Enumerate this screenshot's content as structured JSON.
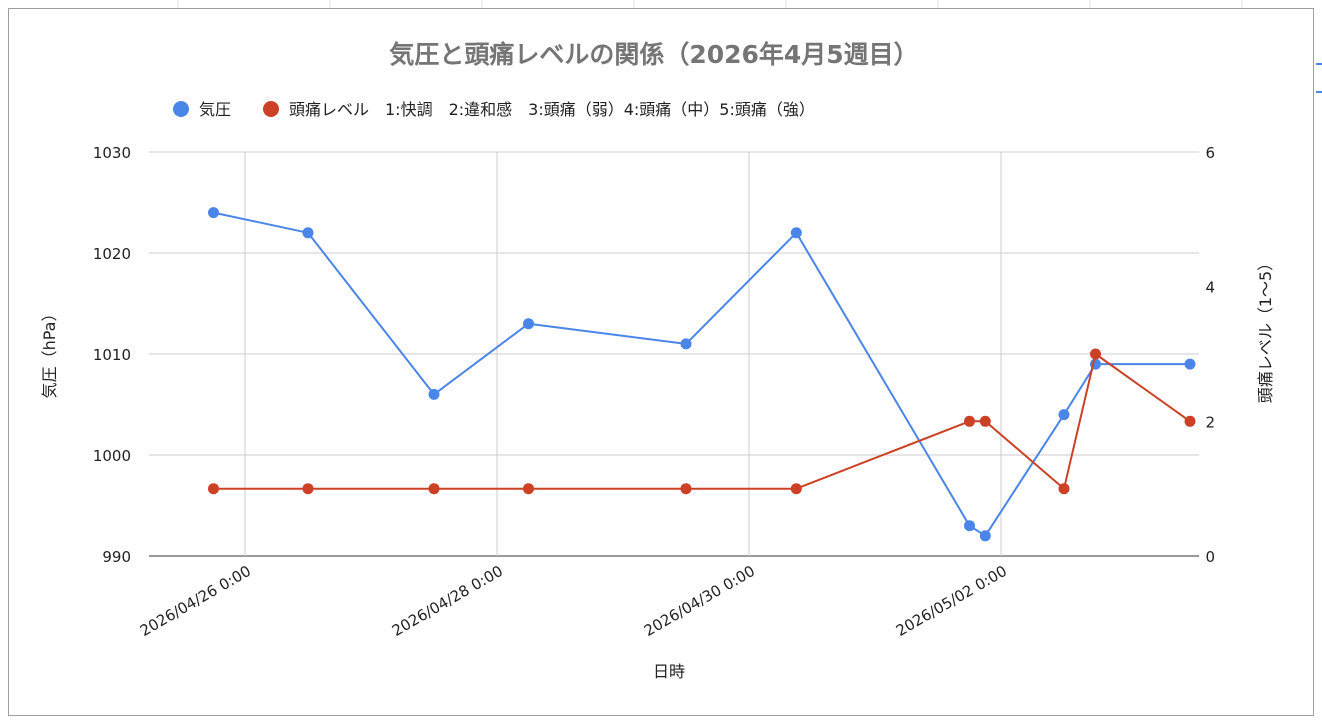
{
  "chart_data": {
    "type": "line",
    "title": "気圧と頭痛レベルの関係（2026年4月5週目）",
    "xlabel": "日時",
    "ylabel_left": "気圧（hPa）",
    "ylabel_right": "頭痛レベル（1〜5）",
    "legend_position": "top-left",
    "grid": true,
    "x_ticks": [
      "2026/04/26 0:00",
      "2026/04/28 0:00",
      "2026/04/30 0:00",
      "2026/05/02 0:00"
    ],
    "y_left": {
      "min": 990,
      "max": 1030,
      "ticks": [
        "990",
        "1000",
        "1010",
        "1020",
        "1030"
      ]
    },
    "y_right": {
      "min": 0,
      "max": 6,
      "ticks": [
        "0",
        "2",
        "4",
        "6"
      ]
    },
    "series": [
      {
        "name": "気圧",
        "axis": "left",
        "color": "#4a86e8",
        "points": [
          {
            "x": "2026-04-25T18:00",
            "y": 1024
          },
          {
            "x": "2026-04-26T12:00",
            "y": 1022
          },
          {
            "x": "2026-04-27T12:00",
            "y": 1006
          },
          {
            "x": "2026-04-28T06:00",
            "y": 1013
          },
          {
            "x": "2026-04-29T12:00",
            "y": 1011
          },
          {
            "x": "2026-04-30T09:00",
            "y": 1022
          },
          {
            "x": "2026-05-01T18:00",
            "y": 993
          },
          {
            "x": "2026-05-01T21:00",
            "y": 992
          },
          {
            "x": "2026-05-02T12:00",
            "y": 1004
          },
          {
            "x": "2026-05-02T18:00",
            "y": 1009
          },
          {
            "x": "2026-05-03T12:00",
            "y": 1009
          }
        ]
      },
      {
        "name": "頭痛レベル　1:快調　2:違和感　3:頭痛（弱）4:頭痛（中）5:頭痛（強）",
        "axis": "right",
        "color": "#cc4125",
        "points": [
          {
            "x": "2026-04-25T18:00",
            "y": 1
          },
          {
            "x": "2026-04-26T12:00",
            "y": 1
          },
          {
            "x": "2026-04-27T12:00",
            "y": 1
          },
          {
            "x": "2026-04-28T06:00",
            "y": 1
          },
          {
            "x": "2026-04-29T12:00",
            "y": 1
          },
          {
            "x": "2026-04-30T09:00",
            "y": 1
          },
          {
            "x": "2026-05-01T18:00",
            "y": 2
          },
          {
            "x": "2026-05-01T21:00",
            "y": 2
          },
          {
            "x": "2026-05-02T12:00",
            "y": 1
          },
          {
            "x": "2026-05-02T18:00",
            "y": 3
          },
          {
            "x": "2026-05-03T12:00",
            "y": 2
          }
        ]
      }
    ]
  }
}
